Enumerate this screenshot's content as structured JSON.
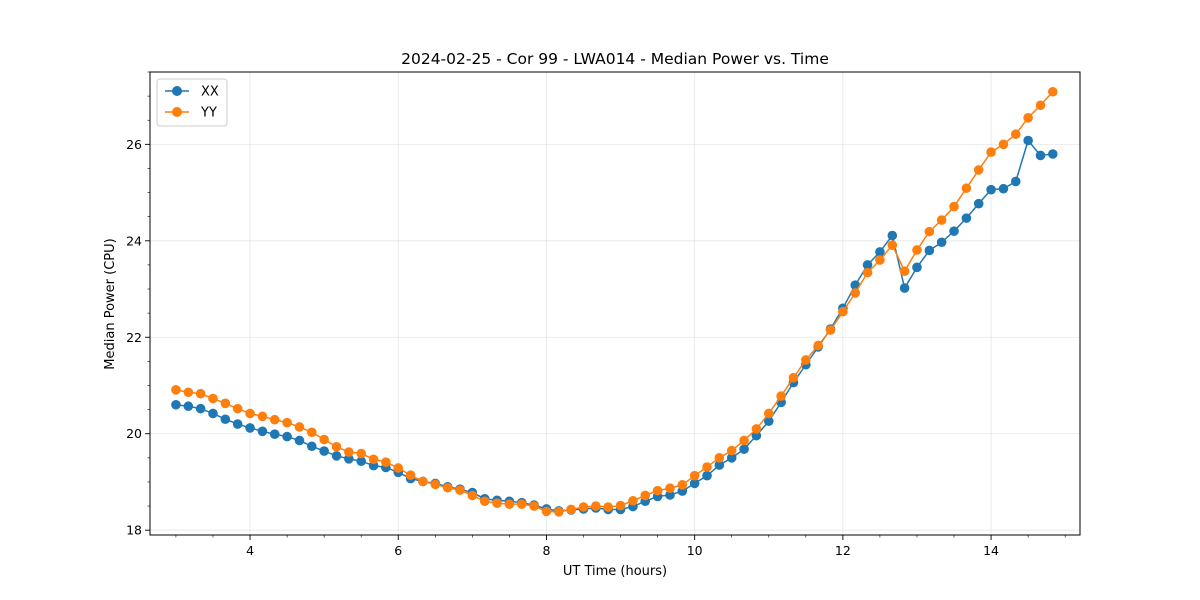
{
  "chart_data": {
    "type": "line",
    "title": "2024-02-25 - Cor 99 - LWA014 - Median Power vs. Time",
    "xlabel": "UT Time (hours)",
    "ylabel": "Median Power (CPU)",
    "xlim": [
      2.65,
      15.2
    ],
    "ylim": [
      17.9,
      27.5
    ],
    "xticks": [
      4,
      6,
      8,
      10,
      12,
      14
    ],
    "xtick_labels": [
      "4",
      "6",
      "8",
      "10",
      "12",
      "14"
    ],
    "yticks": [
      18,
      20,
      22,
      24,
      26
    ],
    "ytick_labels": [
      "18",
      "20",
      "22",
      "24",
      "26"
    ],
    "grid": true,
    "legend_position": "upper-left",
    "x": [
      3.0,
      3.167,
      3.333,
      3.5,
      3.667,
      3.833,
      4.0,
      4.167,
      4.333,
      4.5,
      4.667,
      4.833,
      5.0,
      5.167,
      5.333,
      5.5,
      5.667,
      5.833,
      6.0,
      6.167,
      6.333,
      6.5,
      6.667,
      6.833,
      7.0,
      7.167,
      7.333,
      7.5,
      7.667,
      7.833,
      8.0,
      8.167,
      8.333,
      8.5,
      8.667,
      8.833,
      9.0,
      9.167,
      9.333,
      9.5,
      9.667,
      9.833,
      10.0,
      10.167,
      10.333,
      10.5,
      10.667,
      10.833,
      11.0,
      11.167,
      11.333,
      11.5,
      11.667,
      11.833,
      12.0,
      12.167,
      12.333,
      12.5,
      12.667,
      12.833,
      13.0,
      13.167,
      13.333,
      13.5,
      13.667,
      13.833,
      14.0,
      14.167,
      14.333,
      14.5,
      14.667,
      14.833
    ],
    "series": [
      {
        "name": "XX",
        "color": "#1f77b4",
        "values": [
          20.6,
          20.57,
          20.52,
          20.42,
          20.3,
          20.2,
          20.12,
          20.05,
          19.99,
          19.94,
          19.86,
          19.74,
          19.64,
          19.54,
          19.48,
          19.43,
          19.34,
          19.3,
          19.2,
          19.07,
          19.01,
          18.97,
          18.9,
          18.85,
          18.78,
          18.65,
          18.62,
          18.6,
          18.57,
          18.52,
          18.44,
          18.4,
          18.42,
          18.44,
          18.46,
          18.43,
          18.43,
          18.49,
          18.6,
          18.7,
          18.73,
          18.81,
          18.97,
          19.13,
          19.35,
          19.5,
          19.68,
          19.96,
          20.26,
          20.65,
          21.06,
          21.43,
          21.8,
          22.17,
          22.6,
          23.08,
          23.5,
          23.77,
          24.11,
          23.02,
          23.45,
          23.8,
          23.97,
          24.2,
          24.47,
          24.77,
          25.06,
          25.08,
          25.23,
          26.08,
          25.77,
          25.8
        ]
      },
      {
        "name": "YY",
        "color": "#ff7f0e",
        "values": [
          20.91,
          20.86,
          20.83,
          20.73,
          20.63,
          20.52,
          20.42,
          20.36,
          20.29,
          20.23,
          20.14,
          20.03,
          19.88,
          19.73,
          19.62,
          19.59,
          19.47,
          19.41,
          19.29,
          19.14,
          19.01,
          18.95,
          18.88,
          18.83,
          18.72,
          18.6,
          18.56,
          18.54,
          18.54,
          18.5,
          18.39,
          18.38,
          18.43,
          18.48,
          18.5,
          18.48,
          18.51,
          18.61,
          18.72,
          18.82,
          18.87,
          18.94,
          19.13,
          19.31,
          19.5,
          19.65,
          19.86,
          20.1,
          20.42,
          20.78,
          21.16,
          21.53,
          21.83,
          22.15,
          22.53,
          22.92,
          23.34,
          23.6,
          23.91,
          23.37,
          23.81,
          24.19,
          24.43,
          24.71,
          25.09,
          25.47,
          25.84,
          26.0,
          26.21,
          26.55,
          26.81,
          27.09
        ]
      }
    ]
  }
}
